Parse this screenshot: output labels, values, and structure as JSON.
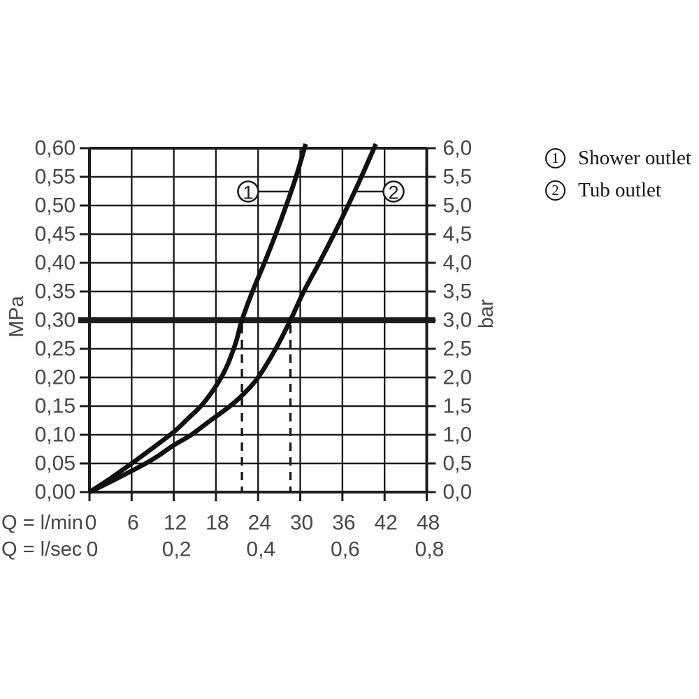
{
  "legend": {
    "items": [
      {
        "id": "1",
        "label": "Shower outlet"
      },
      {
        "id": "2",
        "label": "Tub outlet"
      }
    ]
  },
  "chart_data": {
    "type": "line",
    "title": "",
    "x_axis": {
      "label_lmin": "Q = l/min",
      "label_lsec": "Q = l/sec",
      "lmin_ticks": [
        "0",
        "6",
        "12",
        "18",
        "24",
        "30",
        "36",
        "42",
        "48"
      ],
      "lsec_ticks": [
        "0",
        "0,2",
        "0,4",
        "0,6",
        "0,8"
      ],
      "range_lmin": [
        0,
        48
      ],
      "range_lsec": [
        0,
        0.8
      ]
    },
    "y_axis_left": {
      "label": "MPa",
      "ticks": [
        "0,60",
        "0,55",
        "0,50",
        "0,45",
        "0,40",
        "0,35",
        "0,30",
        "0,25",
        "0,20",
        "0,15",
        "0,10",
        "0,05",
        "0,00"
      ],
      "range_mpa": [
        0,
        0.6
      ]
    },
    "y_axis_right": {
      "label": "bar",
      "ticks": [
        "6,0",
        "5,5",
        "5,0",
        "4,5",
        "4,0",
        "3,5",
        "3,0",
        "2,5",
        "2,0",
        "1,5",
        "1,0",
        "0,5",
        "0,0"
      ],
      "range_bar": [
        0,
        6
      ]
    },
    "grid": true,
    "reference_line": {
      "mpa": 0.3,
      "bar": 3.0
    },
    "guides_lmin": [
      21.7,
      28.6
    ],
    "series": [
      {
        "name": "1",
        "label": "Shower outlet",
        "points_lmin_mpa": [
          [
            0,
            0
          ],
          [
            3,
            0.024
          ],
          [
            6,
            0.05
          ],
          [
            9,
            0.077
          ],
          [
            12,
            0.105
          ],
          [
            14,
            0.128
          ],
          [
            16,
            0.152
          ],
          [
            18,
            0.185
          ],
          [
            19.5,
            0.218
          ],
          [
            20.8,
            0.26
          ],
          [
            21.7,
            0.3
          ],
          [
            23.2,
            0.35
          ],
          [
            24.9,
            0.4
          ],
          [
            26.5,
            0.45
          ],
          [
            28,
            0.5
          ],
          [
            29.4,
            0.55
          ],
          [
            30.6,
            0.6
          ]
        ]
      },
      {
        "name": "2",
        "label": "Tub outlet",
        "points_lmin_mpa": [
          [
            0,
            0
          ],
          [
            3,
            0.018
          ],
          [
            6,
            0.037
          ],
          [
            8,
            0.05
          ],
          [
            10,
            0.065
          ],
          [
            12,
            0.082
          ],
          [
            14.5,
            0.1
          ],
          [
            17,
            0.123
          ],
          [
            20,
            0.15
          ],
          [
            22,
            0.172
          ],
          [
            24,
            0.2
          ],
          [
            26.5,
            0.25
          ],
          [
            28.6,
            0.3
          ],
          [
            30.5,
            0.35
          ],
          [
            32.7,
            0.4
          ],
          [
            34.8,
            0.45
          ],
          [
            36.8,
            0.5
          ],
          [
            38.7,
            0.55
          ],
          [
            40.5,
            0.6
          ]
        ]
      }
    ],
    "colors": {
      "grid_line": "#1c1c1c",
      "curve": "#111111",
      "text": "#474747"
    }
  }
}
